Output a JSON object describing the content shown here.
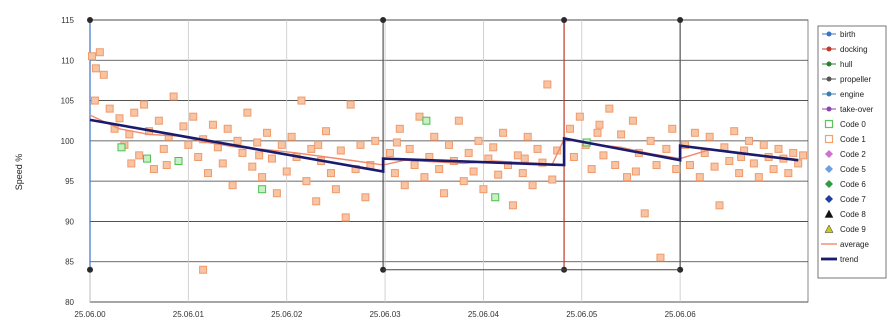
{
  "chart_data": {
    "type": "scatter",
    "title": "",
    "ylabel": "Speed %",
    "xlabel": "",
    "ylim": [
      80,
      115
    ],
    "yticks": [
      80,
      85,
      90,
      95,
      100,
      105,
      110,
      115
    ],
    "xlim": [
      0,
      7.3
    ],
    "xticks": [
      0,
      1,
      2,
      3,
      4,
      5,
      6
    ],
    "xtick_labels": [
      "25.06.00",
      "25.06.01",
      "25.06.02",
      "25.06.03",
      "25.06.04",
      "25.06.05",
      "25.06.06"
    ],
    "grid": true,
    "legend_position": "right",
    "legend": [
      {
        "label": "birth",
        "color": "#3b73c8",
        "marker": "line-dot"
      },
      {
        "label": "docking",
        "color": "#c0392b",
        "marker": "line-dot"
      },
      {
        "label": "hull",
        "color": "#2e7d32",
        "marker": "line-dot"
      },
      {
        "label": "propeller",
        "color": "#555555",
        "marker": "line-dot"
      },
      {
        "label": "engine",
        "color": "#3a7fb0",
        "marker": "line-dot"
      },
      {
        "label": "take-over",
        "color": "#8e44ad",
        "marker": "line-dot"
      },
      {
        "label": "Code 0",
        "color": "#5cc45c",
        "marker": "square"
      },
      {
        "label": "Code 1",
        "color": "#f2a070",
        "marker": "square"
      },
      {
        "label": "Code 2",
        "color": "#d070d0",
        "marker": "diamond"
      },
      {
        "label": "Code 5",
        "color": "#6aa0e8",
        "marker": "diamond"
      },
      {
        "label": "Code 6",
        "color": "#2e9d3e",
        "marker": "diamond"
      },
      {
        "label": "Code 7",
        "color": "#1e3fa0",
        "marker": "diamond"
      },
      {
        "label": "Code 8",
        "color": "#111111",
        "marker": "triangle"
      },
      {
        "label": "Code 9",
        "color": "#c8c820",
        "marker": "triangle"
      },
      {
        "label": "average",
        "color": "#f08a6a",
        "marker": "line"
      },
      {
        "label": "trend",
        "color": "#1a1a6e",
        "marker": "thickline"
      }
    ],
    "events": [
      {
        "type": "birth",
        "x": 0.0,
        "color": "#3b73c8"
      },
      {
        "type": "propeller",
        "x": 2.98,
        "color": "#555555"
      },
      {
        "type": "docking",
        "x": 4.82,
        "color": "#c0392b"
      },
      {
        "type": "propeller",
        "x": 6.0,
        "color": "#555555"
      }
    ],
    "event_markers": {
      "top_y": 115,
      "bottom_y": 84
    },
    "trend": [
      {
        "x": 0.0,
        "y": 102.6
      },
      {
        "x": 2.98,
        "y": 96.2
      },
      {
        "x": 2.98,
        "y": 97.8
      },
      {
        "x": 4.82,
        "y": 97.0
      },
      {
        "x": 4.82,
        "y": 100.3
      },
      {
        "x": 6.0,
        "y": 97.6
      },
      {
        "x": 6.0,
        "y": 99.4
      },
      {
        "x": 7.2,
        "y": 97.6
      }
    ],
    "average": [
      {
        "x": 0.0,
        "y": 103.2
      },
      {
        "x": 0.3,
        "y": 101.5
      },
      {
        "x": 0.6,
        "y": 100.8
      },
      {
        "x": 0.9,
        "y": 100.6
      },
      {
        "x": 1.2,
        "y": 99.8
      },
      {
        "x": 1.5,
        "y": 99.2
      },
      {
        "x": 1.8,
        "y": 98.9
      },
      {
        "x": 2.1,
        "y": 98.5
      },
      {
        "x": 2.4,
        "y": 98.0
      },
      {
        "x": 2.7,
        "y": 97.5
      },
      {
        "x": 2.98,
        "y": 97.0
      },
      {
        "x": 3.2,
        "y": 97.6
      },
      {
        "x": 3.5,
        "y": 97.4
      },
      {
        "x": 3.8,
        "y": 97.2
      },
      {
        "x": 4.1,
        "y": 97.5
      },
      {
        "x": 4.4,
        "y": 97.3
      },
      {
        "x": 4.7,
        "y": 97.1
      },
      {
        "x": 4.82,
        "y": 100.2
      },
      {
        "x": 5.1,
        "y": 99.6
      },
      {
        "x": 5.4,
        "y": 99.2
      },
      {
        "x": 5.7,
        "y": 98.4
      },
      {
        "x": 6.0,
        "y": 97.8
      },
      {
        "x": 6.3,
        "y": 98.9
      },
      {
        "x": 6.6,
        "y": 98.4
      },
      {
        "x": 6.9,
        "y": 98.0
      },
      {
        "x": 7.2,
        "y": 97.6
      }
    ],
    "code1_points": [
      {
        "x": 0.02,
        "y": 110.5
      },
      {
        "x": 0.06,
        "y": 109.0
      },
      {
        "x": 0.1,
        "y": 111.0
      },
      {
        "x": 0.14,
        "y": 108.2
      },
      {
        "x": 0.05,
        "y": 105.0
      },
      {
        "x": 0.2,
        "y": 104.0
      },
      {
        "x": 0.25,
        "y": 101.5
      },
      {
        "x": 0.3,
        "y": 102.8
      },
      {
        "x": 0.35,
        "y": 99.5
      },
      {
        "x": 0.4,
        "y": 100.8
      },
      {
        "x": 0.45,
        "y": 103.5
      },
      {
        "x": 0.5,
        "y": 98.2
      },
      {
        "x": 0.55,
        "y": 104.5
      },
      {
        "x": 0.6,
        "y": 101.2
      },
      {
        "x": 0.65,
        "y": 96.5
      },
      {
        "x": 0.7,
        "y": 102.5
      },
      {
        "x": 0.75,
        "y": 99.0
      },
      {
        "x": 0.8,
        "y": 100.5
      },
      {
        "x": 0.85,
        "y": 105.5
      },
      {
        "x": 0.9,
        "y": 97.5
      },
      {
        "x": 0.95,
        "y": 101.8
      },
      {
        "x": 1.0,
        "y": 99.5
      },
      {
        "x": 1.05,
        "y": 103.0
      },
      {
        "x": 1.1,
        "y": 98.0
      },
      {
        "x": 1.15,
        "y": 100.2
      },
      {
        "x": 1.2,
        "y": 96.0
      },
      {
        "x": 1.25,
        "y": 102.0
      },
      {
        "x": 1.3,
        "y": 99.2
      },
      {
        "x": 1.35,
        "y": 97.2
      },
      {
        "x": 1.4,
        "y": 101.5
      },
      {
        "x": 1.45,
        "y": 94.5
      },
      {
        "x": 1.5,
        "y": 100.0
      },
      {
        "x": 1.55,
        "y": 98.5
      },
      {
        "x": 1.6,
        "y": 103.5
      },
      {
        "x": 1.65,
        "y": 96.8
      },
      {
        "x": 1.7,
        "y": 99.8
      },
      {
        "x": 1.75,
        "y": 95.5
      },
      {
        "x": 1.8,
        "y": 101.0
      },
      {
        "x": 1.85,
        "y": 97.8
      },
      {
        "x": 1.9,
        "y": 93.5
      },
      {
        "x": 1.95,
        "y": 99.5
      },
      {
        "x": 2.0,
        "y": 96.2
      },
      {
        "x": 2.05,
        "y": 100.5
      },
      {
        "x": 2.1,
        "y": 98.0
      },
      {
        "x": 2.15,
        "y": 105.0
      },
      {
        "x": 2.2,
        "y": 95.0
      },
      {
        "x": 2.25,
        "y": 99.0
      },
      {
        "x": 2.3,
        "y": 92.5
      },
      {
        "x": 2.35,
        "y": 97.5
      },
      {
        "x": 2.4,
        "y": 101.2
      },
      {
        "x": 2.45,
        "y": 96.0
      },
      {
        "x": 2.5,
        "y": 94.0
      },
      {
        "x": 2.55,
        "y": 98.8
      },
      {
        "x": 2.6,
        "y": 90.5
      },
      {
        "x": 2.65,
        "y": 104.5
      },
      {
        "x": 2.7,
        "y": 96.5
      },
      {
        "x": 2.75,
        "y": 99.5
      },
      {
        "x": 2.8,
        "y": 93.0
      },
      {
        "x": 2.85,
        "y": 97.0
      },
      {
        "x": 2.9,
        "y": 100.0
      },
      {
        "x": 3.05,
        "y": 98.5
      },
      {
        "x": 3.1,
        "y": 96.0
      },
      {
        "x": 3.15,
        "y": 101.5
      },
      {
        "x": 3.2,
        "y": 94.5
      },
      {
        "x": 3.25,
        "y": 99.0
      },
      {
        "x": 3.3,
        "y": 97.0
      },
      {
        "x": 3.35,
        "y": 103.0
      },
      {
        "x": 3.4,
        "y": 95.5
      },
      {
        "x": 3.45,
        "y": 98.0
      },
      {
        "x": 3.5,
        "y": 100.5
      },
      {
        "x": 3.55,
        "y": 96.5
      },
      {
        "x": 3.6,
        "y": 93.5
      },
      {
        "x": 3.65,
        "y": 99.5
      },
      {
        "x": 3.7,
        "y": 97.5
      },
      {
        "x": 3.75,
        "y": 102.5
      },
      {
        "x": 3.8,
        "y": 95.0
      },
      {
        "x": 3.85,
        "y": 98.5
      },
      {
        "x": 3.9,
        "y": 96.2
      },
      {
        "x": 3.95,
        "y": 100.0
      },
      {
        "x": 4.0,
        "y": 94.0
      },
      {
        "x": 4.05,
        "y": 97.8
      },
      {
        "x": 4.1,
        "y": 99.2
      },
      {
        "x": 4.15,
        "y": 95.8
      },
      {
        "x": 4.2,
        "y": 101.0
      },
      {
        "x": 4.25,
        "y": 97.0
      },
      {
        "x": 4.3,
        "y": 92.0
      },
      {
        "x": 4.35,
        "y": 98.2
      },
      {
        "x": 4.4,
        "y": 96.0
      },
      {
        "x": 4.45,
        "y": 100.5
      },
      {
        "x": 4.5,
        "y": 94.5
      },
      {
        "x": 4.55,
        "y": 99.0
      },
      {
        "x": 4.6,
        "y": 97.3
      },
      {
        "x": 4.65,
        "y": 107.0
      },
      {
        "x": 4.7,
        "y": 95.2
      },
      {
        "x": 4.75,
        "y": 98.8
      },
      {
        "x": 4.88,
        "y": 101.5
      },
      {
        "x": 4.92,
        "y": 98.0
      },
      {
        "x": 4.98,
        "y": 103.0
      },
      {
        "x": 5.04,
        "y": 99.5
      },
      {
        "x": 5.1,
        "y": 96.5
      },
      {
        "x": 5.16,
        "y": 101.0
      },
      {
        "x": 5.22,
        "y": 98.2
      },
      {
        "x": 5.28,
        "y": 104.0
      },
      {
        "x": 5.34,
        "y": 97.0
      },
      {
        "x": 5.4,
        "y": 100.8
      },
      {
        "x": 5.46,
        "y": 95.5
      },
      {
        "x": 5.52,
        "y": 102.5
      },
      {
        "x": 5.58,
        "y": 98.5
      },
      {
        "x": 5.64,
        "y": 91.0
      },
      {
        "x": 5.7,
        "y": 100.0
      },
      {
        "x": 5.76,
        "y": 97.0
      },
      {
        "x": 5.8,
        "y": 85.5
      },
      {
        "x": 5.86,
        "y": 99.0
      },
      {
        "x": 5.92,
        "y": 101.5
      },
      {
        "x": 5.96,
        "y": 96.5
      },
      {
        "x": 6.05,
        "y": 99.5
      },
      {
        "x": 6.1,
        "y": 97.0
      },
      {
        "x": 6.15,
        "y": 101.0
      },
      {
        "x": 6.2,
        "y": 95.5
      },
      {
        "x": 6.25,
        "y": 98.5
      },
      {
        "x": 6.3,
        "y": 100.5
      },
      {
        "x": 6.35,
        "y": 96.8
      },
      {
        "x": 6.4,
        "y": 92.0
      },
      {
        "x": 6.45,
        "y": 99.2
      },
      {
        "x": 6.5,
        "y": 97.5
      },
      {
        "x": 6.55,
        "y": 101.2
      },
      {
        "x": 6.6,
        "y": 96.0
      },
      {
        "x": 6.65,
        "y": 98.8
      },
      {
        "x": 6.7,
        "y": 100.0
      },
      {
        "x": 6.75,
        "y": 97.2
      },
      {
        "x": 6.8,
        "y": 95.5
      },
      {
        "x": 6.85,
        "y": 99.5
      },
      {
        "x": 6.9,
        "y": 98.0
      },
      {
        "x": 6.95,
        "y": 96.5
      },
      {
        "x": 7.0,
        "y": 99.0
      },
      {
        "x": 7.05,
        "y": 97.8
      },
      {
        "x": 7.1,
        "y": 96.0
      },
      {
        "x": 7.15,
        "y": 98.5
      },
      {
        "x": 7.2,
        "y": 97.2
      },
      {
        "x": 7.25,
        "y": 98.2
      },
      {
        "x": 1.15,
        "y": 84.0
      },
      {
        "x": 0.78,
        "y": 97.0
      },
      {
        "x": 1.72,
        "y": 98.2
      },
      {
        "x": 3.12,
        "y": 99.8
      },
      {
        "x": 4.42,
        "y": 97.8
      },
      {
        "x": 5.55,
        "y": 96.2
      },
      {
        "x": 6.62,
        "y": 98.0
      },
      {
        "x": 2.32,
        "y": 99.5
      },
      {
        "x": 0.42,
        "y": 97.2
      },
      {
        "x": 5.18,
        "y": 102.0
      }
    ],
    "code0_points": [
      {
        "x": 0.32,
        "y": 99.2
      },
      {
        "x": 0.58,
        "y": 97.8
      },
      {
        "x": 0.9,
        "y": 97.5
      },
      {
        "x": 1.75,
        "y": 94.0
      },
      {
        "x": 3.42,
        "y": 102.5
      },
      {
        "x": 4.12,
        "y": 93.0
      },
      {
        "x": 5.05,
        "y": 99.8
      }
    ]
  }
}
